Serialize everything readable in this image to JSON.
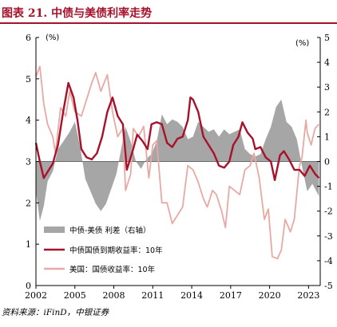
{
  "title": "图表 21. 中债与美债利率走势",
  "source": "资料来源：iFinD，中银证券",
  "chart_data": {
    "type": "line",
    "left_axis": {
      "unit_label": "(%)",
      "range": [
        0,
        6
      ],
      "ticks": [
        0,
        1,
        2,
        3,
        4,
        5,
        6
      ]
    },
    "right_axis": {
      "unit_label": "(%)",
      "range": [
        -5,
        5
      ],
      "ticks": [
        -5,
        -4,
        -3,
        -2,
        -1,
        0,
        1,
        2,
        3,
        4,
        5
      ]
    },
    "x_axis": {
      "range": [
        2002.0,
        2023.9
      ],
      "tick_labels": [
        "2002",
        "2005",
        "2008",
        "2011",
        "2014",
        "2017",
        "2020",
        "2023"
      ]
    },
    "legend_position": "lower-left",
    "series": [
      {
        "name": "中债-美债 利差（右轴）",
        "type": "area",
        "axis": "right",
        "color": "#a6a6a6",
        "points": [
          [
            2002.0,
            -1.2
          ],
          [
            2002.3,
            -2.4
          ],
          [
            2002.6,
            -1.8
          ],
          [
            2002.9,
            -0.8
          ],
          [
            2003.3,
            -0.4
          ],
          [
            2003.7,
            0.5
          ],
          [
            2004.1,
            0.8
          ],
          [
            2004.6,
            1.2
          ],
          [
            2005.0,
            1.6
          ],
          [
            2005.4,
            0.6
          ],
          [
            2005.8,
            -0.7
          ],
          [
            2006.2,
            -1.2
          ],
          [
            2006.6,
            -1.7
          ],
          [
            2007.0,
            -2.0
          ],
          [
            2007.4,
            -1.7
          ],
          [
            2007.8,
            -1.1
          ],
          [
            2008.2,
            -0.5
          ],
          [
            2008.6,
            0.6
          ],
          [
            2008.9,
            1.4
          ],
          [
            2009.3,
            0.8
          ],
          [
            2009.7,
            0.0
          ],
          [
            2010.1,
            -0.3
          ],
          [
            2010.5,
            0.1
          ],
          [
            2010.9,
            0.3
          ],
          [
            2011.3,
            0.8
          ],
          [
            2011.7,
            1.9
          ],
          [
            2012.1,
            1.5
          ],
          [
            2012.5,
            1.7
          ],
          [
            2012.9,
            1.6
          ],
          [
            2013.3,
            1.4
          ],
          [
            2013.7,
            0.9
          ],
          [
            2014.1,
            1.0
          ],
          [
            2014.5,
            1.6
          ],
          [
            2014.9,
            1.4
          ],
          [
            2015.3,
            1.2
          ],
          [
            2015.7,
            1.3
          ],
          [
            2016.1,
            1.0
          ],
          [
            2016.5,
            1.3
          ],
          [
            2016.9,
            1.1
          ],
          [
            2017.3,
            1.2
          ],
          [
            2017.7,
            1.3
          ],
          [
            2018.1,
            0.5
          ],
          [
            2018.5,
            0.3
          ],
          [
            2018.9,
            0.2
          ],
          [
            2019.3,
            0.3
          ],
          [
            2019.7,
            0.9
          ],
          [
            2020.1,
            1.4
          ],
          [
            2020.5,
            2.2
          ],
          [
            2020.9,
            2.5
          ],
          [
            2021.3,
            1.6
          ],
          [
            2021.7,
            1.4
          ],
          [
            2022.1,
            0.9
          ],
          [
            2022.5,
            -0.2
          ],
          [
            2022.9,
            -1.2
          ],
          [
            2023.3,
            -0.9
          ],
          [
            2023.8,
            -1.4
          ]
        ]
      },
      {
        "name": "中债国债到期收益率：10年",
        "type": "line",
        "axis": "left",
        "color": "#a8112a",
        "points": [
          [
            2002.0,
            3.45
          ],
          [
            2002.3,
            3.0
          ],
          [
            2002.6,
            2.6
          ],
          [
            2002.9,
            2.75
          ],
          [
            2003.3,
            2.95
          ],
          [
            2003.7,
            3.4
          ],
          [
            2004.1,
            4.2
          ],
          [
            2004.5,
            4.9
          ],
          [
            2004.9,
            4.55
          ],
          [
            2005.2,
            4.0
          ],
          [
            2005.5,
            3.3
          ],
          [
            2005.9,
            3.1
          ],
          [
            2006.3,
            3.05
          ],
          [
            2006.7,
            3.2
          ],
          [
            2007.1,
            3.6
          ],
          [
            2007.5,
            4.2
          ],
          [
            2007.9,
            4.55
          ],
          [
            2008.3,
            4.1
          ],
          [
            2008.7,
            3.9
          ],
          [
            2009.0,
            2.8
          ],
          [
            2009.4,
            3.2
          ],
          [
            2009.8,
            3.65
          ],
          [
            2010.2,
            3.5
          ],
          [
            2010.6,
            3.3
          ],
          [
            2010.9,
            3.9
          ],
          [
            2011.3,
            3.95
          ],
          [
            2011.7,
            3.9
          ],
          [
            2012.1,
            3.45
          ],
          [
            2012.5,
            3.35
          ],
          [
            2012.9,
            3.55
          ],
          [
            2013.3,
            3.6
          ],
          [
            2013.7,
            4.0
          ],
          [
            2013.9,
            4.55
          ],
          [
            2014.1,
            4.5
          ],
          [
            2014.5,
            4.2
          ],
          [
            2014.9,
            3.6
          ],
          [
            2015.3,
            3.4
          ],
          [
            2015.7,
            3.2
          ],
          [
            2016.1,
            2.9
          ],
          [
            2016.5,
            2.85
          ],
          [
            2016.9,
            3.0
          ],
          [
            2017.2,
            3.4
          ],
          [
            2017.6,
            3.6
          ],
          [
            2017.9,
            3.95
          ],
          [
            2018.3,
            3.7
          ],
          [
            2018.7,
            3.55
          ],
          [
            2018.9,
            3.3
          ],
          [
            2019.3,
            3.35
          ],
          [
            2019.7,
            3.1
          ],
          [
            2020.1,
            3.0
          ],
          [
            2020.4,
            2.55
          ],
          [
            2020.8,
            3.15
          ],
          [
            2021.1,
            3.25
          ],
          [
            2021.5,
            3.05
          ],
          [
            2021.9,
            2.8
          ],
          [
            2022.3,
            2.8
          ],
          [
            2022.7,
            2.65
          ],
          [
            2023.1,
            2.9
          ],
          [
            2023.5,
            2.7
          ],
          [
            2023.8,
            2.6
          ]
        ]
      },
      {
        "name": "美国：国债收益率：10年",
        "type": "line",
        "axis": "left",
        "color": "#e8a8a4",
        "points": [
          [
            2002.0,
            5.05
          ],
          [
            2002.3,
            5.3
          ],
          [
            2002.6,
            4.4
          ],
          [
            2002.9,
            3.9
          ],
          [
            2003.3,
            3.6
          ],
          [
            2003.5,
            3.2
          ],
          [
            2003.9,
            4.3
          ],
          [
            2004.3,
            4.1
          ],
          [
            2004.6,
            4.7
          ],
          [
            2005.0,
            4.2
          ],
          [
            2005.5,
            4.1
          ],
          [
            2005.9,
            4.5
          ],
          [
            2006.3,
            4.9
          ],
          [
            2006.6,
            5.15
          ],
          [
            2007.0,
            4.7
          ],
          [
            2007.5,
            5.1
          ],
          [
            2007.9,
            4.2
          ],
          [
            2008.3,
            3.6
          ],
          [
            2008.7,
            3.8
          ],
          [
            2008.9,
            2.3
          ],
          [
            2009.3,
            2.7
          ],
          [
            2009.5,
            3.8
          ],
          [
            2009.9,
            3.6
          ],
          [
            2010.3,
            3.85
          ],
          [
            2010.7,
            2.6
          ],
          [
            2011.0,
            3.4
          ],
          [
            2011.3,
            3.5
          ],
          [
            2011.7,
            2.0
          ],
          [
            2012.1,
            2.0
          ],
          [
            2012.5,
            1.5
          ],
          [
            2012.9,
            1.7
          ],
          [
            2013.3,
            1.9
          ],
          [
            2013.7,
            2.9
          ],
          [
            2014.1,
            2.8
          ],
          [
            2014.5,
            2.5
          ],
          [
            2014.9,
            2.1
          ],
          [
            2015.2,
            1.9
          ],
          [
            2015.6,
            2.3
          ],
          [
            2015.9,
            2.2
          ],
          [
            2016.3,
            1.8
          ],
          [
            2016.6,
            1.4
          ],
          [
            2016.9,
            2.4
          ],
          [
            2017.3,
            2.3
          ],
          [
            2017.7,
            2.2
          ],
          [
            2018.1,
            2.8
          ],
          [
            2018.5,
            2.9
          ],
          [
            2018.8,
            3.2
          ],
          [
            2019.2,
            2.6
          ],
          [
            2019.6,
            1.6
          ],
          [
            2019.9,
            1.85
          ],
          [
            2020.2,
            0.7
          ],
          [
            2020.6,
            0.65
          ],
          [
            2020.9,
            0.85
          ],
          [
            2021.2,
            1.6
          ],
          [
            2021.6,
            1.3
          ],
          [
            2021.9,
            1.6
          ],
          [
            2022.3,
            2.9
          ],
          [
            2022.5,
            3.1
          ],
          [
            2022.8,
            4.0
          ],
          [
            2022.9,
            3.7
          ],
          [
            2023.2,
            3.4
          ],
          [
            2023.5,
            3.8
          ],
          [
            2023.8,
            3.9
          ]
        ]
      }
    ]
  }
}
